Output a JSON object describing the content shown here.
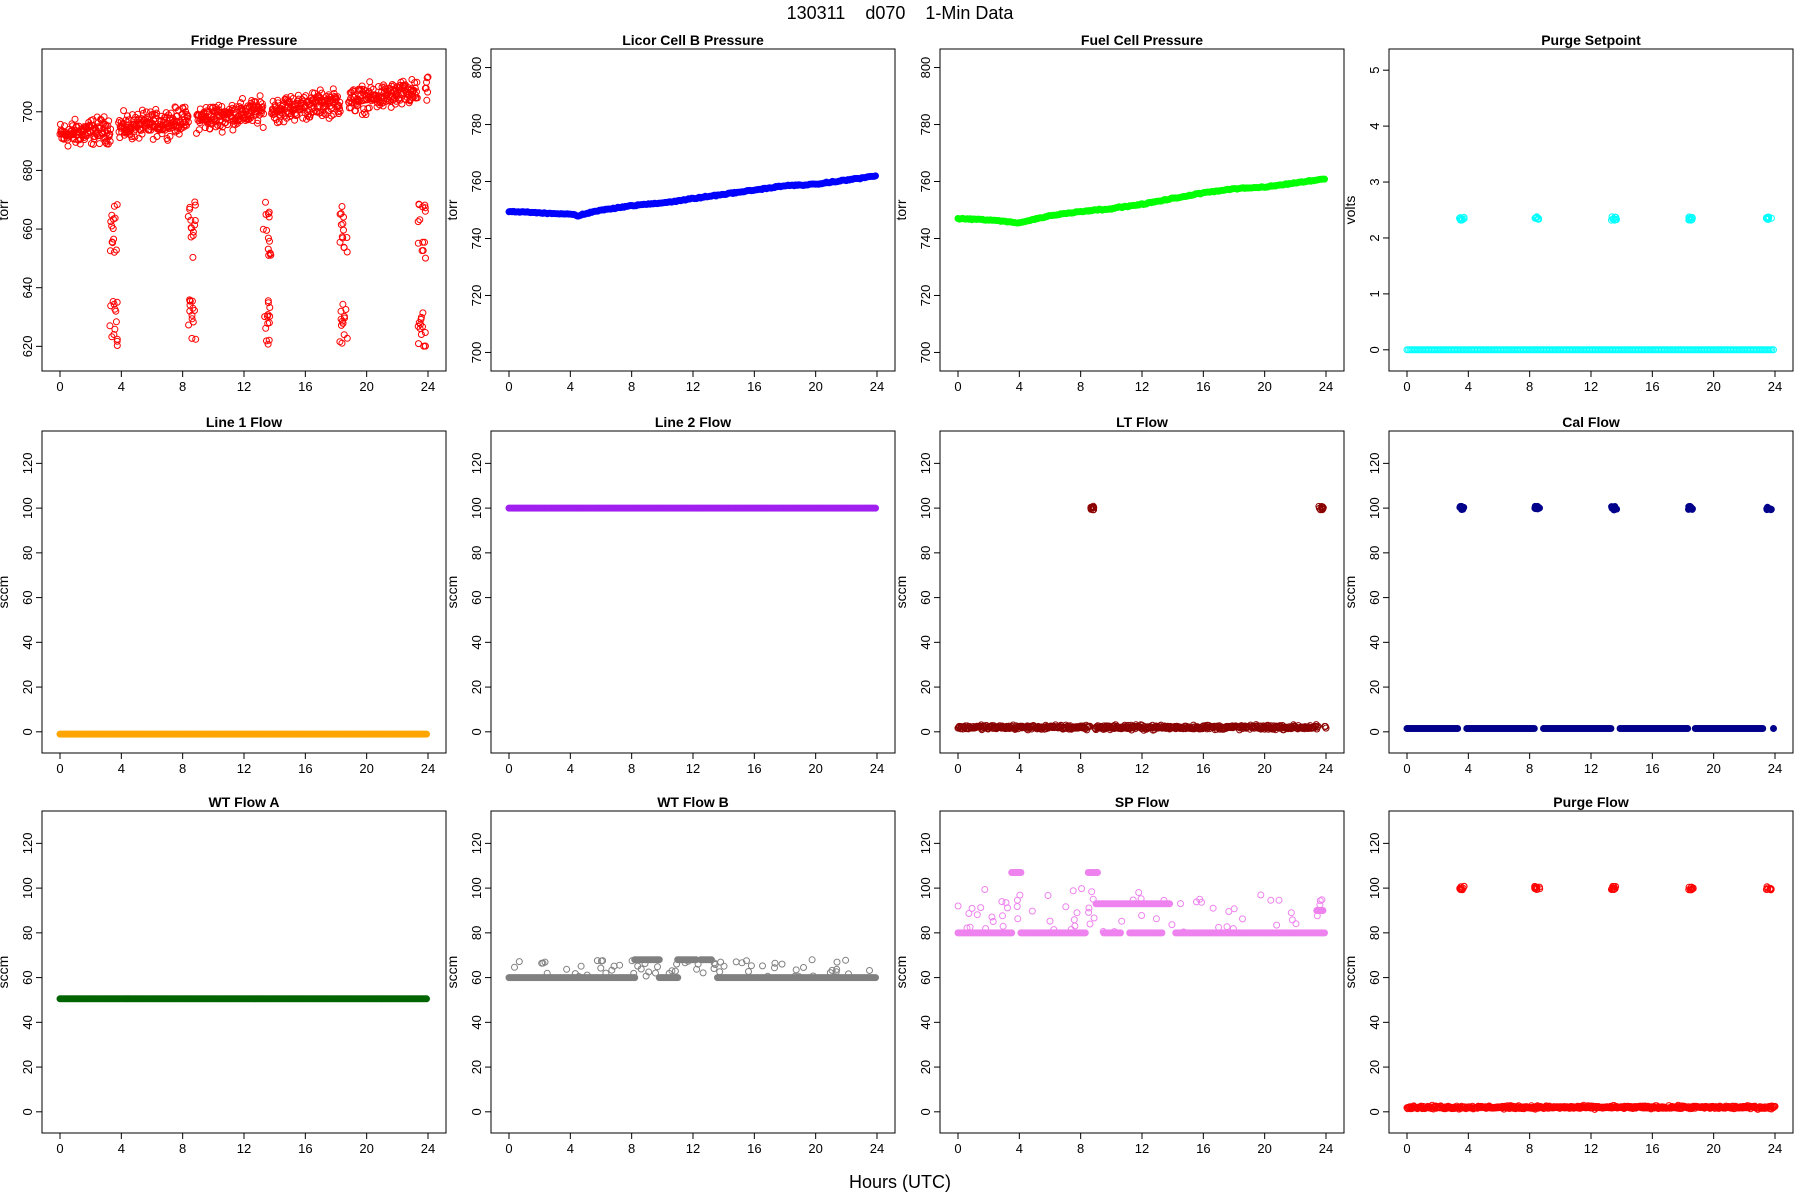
{
  "page": {
    "title": "130311    d070    1-Min Data",
    "xlabel": "Hours (UTC)"
  },
  "chart_data": [
    {
      "type": "scatter",
      "title": "Fridge Pressure",
      "ylabel": "torr",
      "xlim": [
        0,
        24
      ],
      "ylim": [
        615,
        718
      ],
      "xticks": [
        0,
        4,
        8,
        12,
        16,
        20,
        24
      ],
      "yticks": [
        620,
        640,
        660,
        680,
        700
      ],
      "color": "#ff0000",
      "marker": "open-circle",
      "series": [
        {
          "x_range": [
            0,
            24
          ],
          "y_start": 692,
          "y_end": 707,
          "noise": 5,
          "gaps": [
            [
              3.3,
              3.8
            ],
            [
              8.4,
              8.9
            ],
            [
              13.3,
              13.8
            ],
            [
              18.3,
              18.8
            ],
            [
              23.3,
              23.8
            ]
          ]
        },
        {
          "cluster_x": [
            3.5,
            8.6,
            13.5,
            18.5,
            23.6
          ],
          "y_range": [
            650,
            670
          ]
        },
        {
          "cluster_x": [
            3.5,
            8.6,
            13.5,
            18.5,
            23.6
          ],
          "y_range": [
            620,
            636
          ]
        }
      ]
    },
    {
      "type": "scatter",
      "title": "Licor Cell B Pressure",
      "ylabel": "torr",
      "xlim": [
        0,
        24
      ],
      "ylim": [
        697,
        803
      ],
      "xticks": [
        0,
        4,
        8,
        12,
        16,
        20,
        24
      ],
      "yticks": [
        700,
        720,
        740,
        760,
        780,
        800
      ],
      "color": "#0000ff",
      "marker": "filled-circle",
      "series": [
        {
          "x": [
            0,
            2,
            4,
            4.5,
            6,
            8,
            10,
            12,
            14,
            16,
            18,
            20,
            22,
            24
          ],
          "y": [
            749.5,
            749,
            748.5,
            748,
            750,
            751.5,
            752.5,
            754,
            755.5,
            757,
            758.5,
            759,
            760.5,
            762
          ]
        }
      ]
    },
    {
      "type": "scatter",
      "title": "Fuel Cell Pressure",
      "ylabel": "torr",
      "xlim": [
        0,
        24
      ],
      "ylim": [
        697,
        803
      ],
      "xticks": [
        0,
        4,
        8,
        12,
        16,
        20,
        24
      ],
      "yticks": [
        700,
        720,
        740,
        760,
        780,
        800
      ],
      "color": "#00ff00",
      "marker": "filled-circle",
      "series": [
        {
          "x": [
            0,
            2,
            4,
            6,
            8,
            10,
            12,
            14,
            16,
            18,
            20,
            22,
            24
          ],
          "y": [
            747,
            746.5,
            745.5,
            748,
            749.5,
            750.5,
            752,
            754,
            756,
            757.5,
            758,
            759.5,
            761
          ]
        }
      ]
    },
    {
      "type": "scatter",
      "title": "Purge Setpoint",
      "ylabel": "volts",
      "xlim": [
        0,
        24
      ],
      "ylim": [
        -0.2,
        5.2
      ],
      "xticks": [
        0,
        4,
        8,
        12,
        16,
        20,
        24
      ],
      "yticks": [
        0,
        1,
        2,
        3,
        4,
        5
      ],
      "color": "#00ffff",
      "marker": "open-circle",
      "series": [
        {
          "constant": 0,
          "x_range": [
            0,
            24
          ]
        },
        {
          "cluster_x": [
            3.6,
            8.5,
            13.5,
            18.5,
            23.6
          ],
          "y": 2.35
        }
      ]
    },
    {
      "type": "scatter",
      "title": "Line 1 Flow",
      "ylabel": "sccm",
      "xlim": [
        0,
        24
      ],
      "ylim": [
        -5,
        130
      ],
      "xticks": [
        0,
        4,
        8,
        12,
        16,
        20,
        24
      ],
      "yticks": [
        0,
        20,
        40,
        60,
        80,
        100,
        120
      ],
      "color": "#ffa500",
      "marker": "filled-circle",
      "series": [
        {
          "constant": -1,
          "x_range": [
            0,
            24
          ]
        }
      ]
    },
    {
      "type": "scatter",
      "title": "Line 2 Flow",
      "ylabel": "sccm",
      "xlim": [
        0,
        24
      ],
      "ylim": [
        -5,
        130
      ],
      "xticks": [
        0,
        4,
        8,
        12,
        16,
        20,
        24
      ],
      "yticks": [
        0,
        20,
        40,
        60,
        80,
        100,
        120
      ],
      "color": "#a020f0",
      "marker": "filled-circle",
      "series": [
        {
          "constant": 100,
          "x_range": [
            0,
            24
          ]
        }
      ]
    },
    {
      "type": "scatter",
      "title": "LT Flow",
      "ylabel": "sccm",
      "xlim": [
        0,
        24
      ],
      "ylim": [
        -5,
        130
      ],
      "xticks": [
        0,
        4,
        8,
        12,
        16,
        20,
        24
      ],
      "yticks": [
        0,
        20,
        40,
        60,
        80,
        100,
        120
      ],
      "color": "#8b0000",
      "marker": "open-circle",
      "series": [
        {
          "baseline": 2,
          "noise": 1.5,
          "x_range": [
            0,
            24
          ],
          "gaps": [
            [
              8.6,
              8.9
            ],
            [
              23.5,
              23.9
            ]
          ]
        },
        {
          "cluster_x": [
            8.7,
            23.7
          ],
          "y": 100
        }
      ]
    },
    {
      "type": "scatter",
      "title": "Cal Flow",
      "ylabel": "sccm",
      "xlim": [
        0,
        24
      ],
      "ylim": [
        -5,
        130
      ],
      "xticks": [
        0,
        4,
        8,
        12,
        16,
        20,
        24
      ],
      "yticks": [
        0,
        20,
        40,
        60,
        80,
        100,
        120
      ],
      "color": "#00008b",
      "marker": "filled-circle",
      "series": [
        {
          "constant": 1.5,
          "x_range": [
            0,
            24
          ],
          "gaps": [
            [
              3.4,
              3.9
            ],
            [
              8.3,
              8.8
            ],
            [
              13.3,
              13.8
            ],
            [
              18.3,
              18.7
            ],
            [
              23.3,
              23.9
            ]
          ]
        },
        {
          "cluster_x": [
            3.6,
            8.5,
            13.5,
            18.5,
            23.6
          ],
          "y": 100
        }
      ]
    },
    {
      "type": "scatter",
      "title": "WT Flow A",
      "ylabel": "sccm",
      "xlim": [
        0,
        24
      ],
      "ylim": [
        -5,
        130
      ],
      "xticks": [
        0,
        4,
        8,
        12,
        16,
        20,
        24
      ],
      "yticks": [
        0,
        20,
        40,
        60,
        80,
        100,
        120
      ],
      "color": "#006400",
      "marker": "filled-circle",
      "series": [
        {
          "constant": 50.5,
          "x_range": [
            0,
            24
          ]
        }
      ]
    },
    {
      "type": "scatter",
      "title": "WT Flow B",
      "ylabel": "sccm",
      "xlim": [
        0,
        24
      ],
      "ylim": [
        -5,
        130
      ],
      "xticks": [
        0,
        4,
        8,
        12,
        16,
        20,
        24
      ],
      "yticks": [
        0,
        20,
        40,
        60,
        80,
        100,
        120
      ],
      "color": "#808080",
      "marker": "filled-circle",
      "series": [
        {
          "segments": [
            [
              0,
              8.2,
              60
            ],
            [
              8.2,
              9.8,
              68
            ],
            [
              9.8,
              11,
              60
            ],
            [
              11,
              12.2,
              68
            ],
            [
              12.5,
              13.2,
              68
            ],
            [
              13.6,
              24,
              60
            ]
          ]
        },
        {
          "scatter_y_range": [
            60,
            68
          ],
          "x_range": [
            0,
            24
          ]
        }
      ]
    },
    {
      "type": "scatter",
      "title": "SP Flow",
      "ylabel": "sccm",
      "xlim": [
        0,
        24
      ],
      "ylim": [
        -5,
        130
      ],
      "xticks": [
        0,
        4,
        8,
        12,
        16,
        20,
        24
      ],
      "yticks": [
        0,
        20,
        40,
        60,
        80,
        100,
        120
      ],
      "color": "#ee82ee",
      "marker": "filled-circle",
      "series": [
        {
          "segments": [
            [
              0,
              3.6,
              80
            ],
            [
              4.1,
              8.3,
              80
            ],
            [
              9.5,
              10.6,
              80
            ],
            [
              11.2,
              13.3,
              80
            ],
            [
              14.2,
              24,
              80
            ],
            [
              9,
              13.8,
              93
            ],
            [
              23.4,
              23.9,
              90
            ],
            [
              3.5,
              4.1,
              107
            ],
            [
              8.5,
              9.1,
              107
            ]
          ]
        },
        {
          "scatter_y_range": [
            80,
            100
          ],
          "x_range": [
            0,
            24
          ]
        }
      ]
    },
    {
      "type": "scatter",
      "title": "Purge Flow",
      "ylabel": "sccm",
      "xlim": [
        0,
        24
      ],
      "ylim": [
        -5,
        130
      ],
      "xticks": [
        0,
        4,
        8,
        12,
        16,
        20,
        24
      ],
      "yticks": [
        0,
        20,
        40,
        60,
        80,
        100,
        120
      ],
      "color": "#ff0000",
      "marker": "open-circle",
      "series": [
        {
          "baseline": 2,
          "noise": 1,
          "x_range": [
            0,
            24
          ]
        },
        {
          "cluster_x": [
            3.6,
            8.5,
            13.5,
            18.5,
            23.6
          ],
          "y": 100
        }
      ]
    }
  ]
}
